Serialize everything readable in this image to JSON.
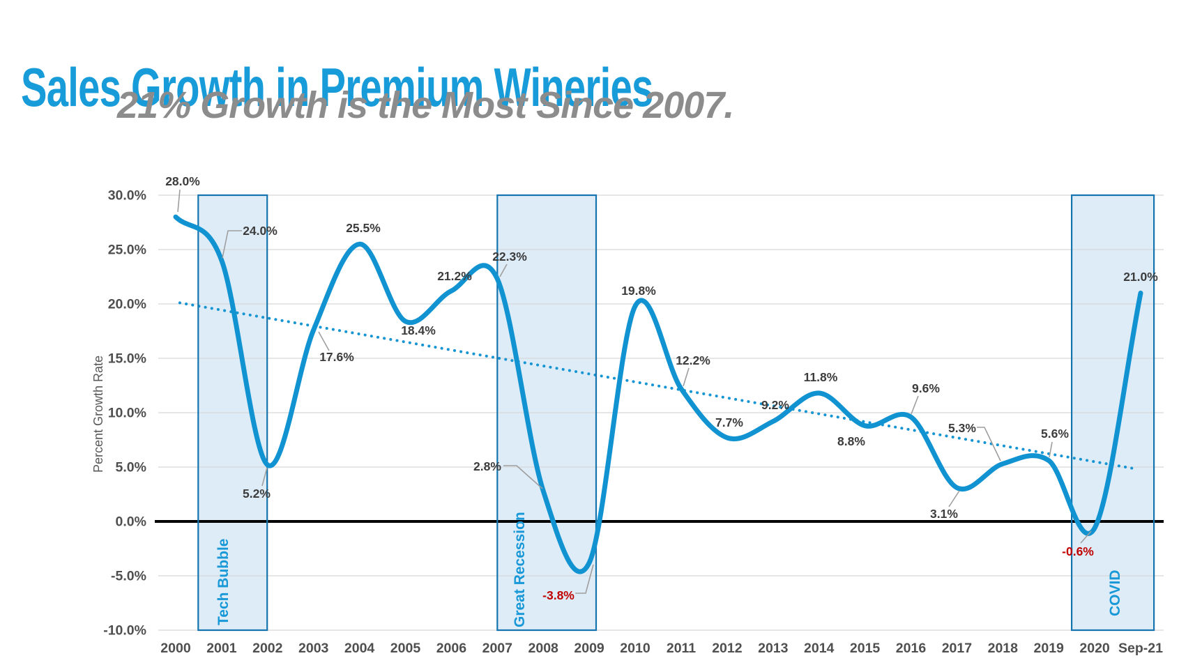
{
  "header": {
    "title": "Sales Growth in Premium Wineries",
    "subtitle": "21% Growth is the Most Since 2007."
  },
  "chart_data": {
    "type": "line",
    "title": "Sales Growth in Premium Wineries",
    "subtitle": "21% Growth is the Most Since 2007",
    "xlabel": "",
    "ylabel": "Percent Growth Rate",
    "ylim": [
      -10,
      30
    ],
    "ytick_step": 5,
    "grid": true,
    "legend": "none",
    "yticks": [
      {
        "value": 30,
        "label": "30.0%"
      },
      {
        "value": 25,
        "label": "25.0%"
      },
      {
        "value": 20,
        "label": "20.0%"
      },
      {
        "value": 15,
        "label": "15.0%"
      },
      {
        "value": 10,
        "label": "10.0%"
      },
      {
        "value": 5,
        "label": "5.0%"
      },
      {
        "value": 0,
        "label": "0.0%"
      },
      {
        "value": -5,
        "label": "-5.0%"
      },
      {
        "value": -10,
        "label": "-10.0%"
      }
    ],
    "categories": [
      "2000",
      "2001",
      "2002",
      "2003",
      "2004",
      "2005",
      "2006",
      "2007",
      "2008",
      "2009",
      "2010",
      "2011",
      "2012",
      "2013",
      "2014",
      "2015",
      "2016",
      "2017",
      "2018",
      "2019",
      "2020",
      "Sep-21"
    ],
    "values": [
      28.0,
      24.0,
      5.2,
      17.6,
      25.5,
      18.4,
      21.2,
      22.3,
      2.8,
      -3.8,
      19.8,
      12.2,
      7.7,
      9.2,
      11.8,
      8.8,
      9.6,
      3.1,
      5.3,
      5.6,
      -0.6,
      21.0
    ],
    "data_labels": [
      "28.0%",
      "24.0%",
      "5.2%",
      "17.6%",
      "25.5%",
      "18.4%",
      "21.2%",
      "22.3%",
      "2.8%",
      "-3.8%",
      "19.8%",
      "12.2%",
      "7.7%",
      "9.2%",
      "11.8%",
      "8.8%",
      "9.6%",
      "3.1%",
      "5.3%",
      "5.6%",
      "-0.6%",
      "21.0%"
    ],
    "bands": [
      {
        "label": "Tech Bubble",
        "from_index": 0.49,
        "to_index": 1.99
      },
      {
        "label": "Great Recession",
        "from_index": 7.0,
        "to_index": 9.15
      },
      {
        "label": "COVID",
        "from_index": 19.5,
        "to_index": 21.29
      }
    ],
    "trendline": {
      "style": "dotted",
      "from": {
        "index": 0.09,
        "value": 20.1
      },
      "to": {
        "index": 20.94,
        "value": 4.8
      }
    },
    "colors": {
      "line": "#1193D2",
      "trend": "#1494D3",
      "band_fill": "#DAEAF7",
      "band_border": "#1474AE",
      "band_label": "#1898D7",
      "title": "#189CD9",
      "subtitle": "#8C8C8C",
      "axis_text": "#4F4F4F",
      "axis_title_text": "#595959",
      "data_label": "#3C3C3C",
      "negative": "#C00000",
      "zero_line": "#000000",
      "gridline": "#D7D7D7",
      "leader": "#9E9E9E"
    }
  }
}
